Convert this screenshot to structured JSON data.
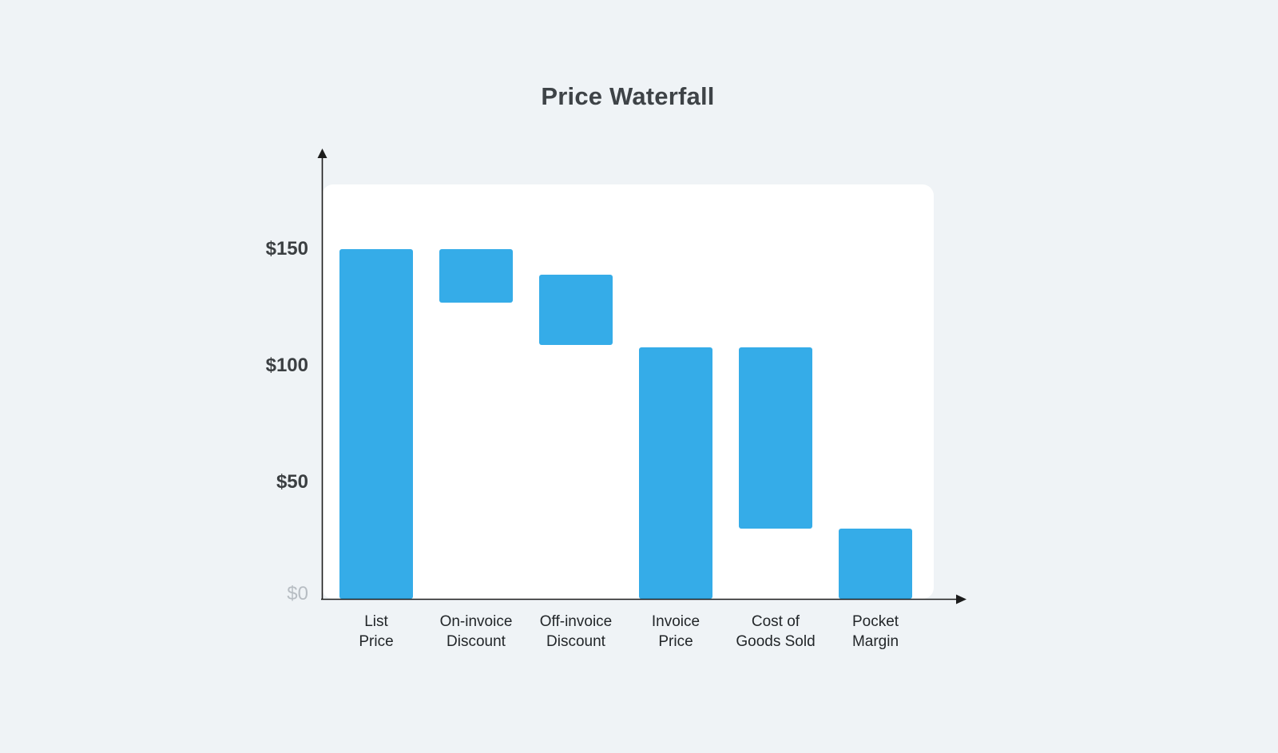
{
  "chart_data": {
    "type": "bar",
    "subtype": "waterfall",
    "title": "Price Waterfall",
    "categories": [
      "List\nPrice",
      "On-invoice\nDiscount",
      "Off-invoice\nDiscount",
      "Invoice\nPrice",
      "Cost of\nGoods Sold",
      "Pocket\nMargin"
    ],
    "bars": [
      {
        "label": "List Price",
        "start": 0,
        "end": 150
      },
      {
        "label": "On-invoice Discount",
        "start": 127,
        "end": 150
      },
      {
        "label": "Off-invoice Discount",
        "start": 109,
        "end": 139
      },
      {
        "label": "Invoice Price",
        "start": 0,
        "end": 108
      },
      {
        "label": "Cost of Goods Sold",
        "start": 30,
        "end": 108
      },
      {
        "label": "Pocket Margin",
        "start": 0,
        "end": 30
      }
    ],
    "y_ticks": [
      {
        "label": "$150",
        "value": 150
      },
      {
        "label": "$100",
        "value": 100
      },
      {
        "label": "$50",
        "value": 50
      },
      {
        "label": "$0",
        "value": 0
      }
    ],
    "ylim": [
      0,
      178
    ],
    "xlabel": "",
    "ylabel": "",
    "grid": false,
    "legend": false,
    "bar_color": "#35ACE8",
    "background_color": "#eff3f6",
    "panel_color": "#ffffff"
  }
}
